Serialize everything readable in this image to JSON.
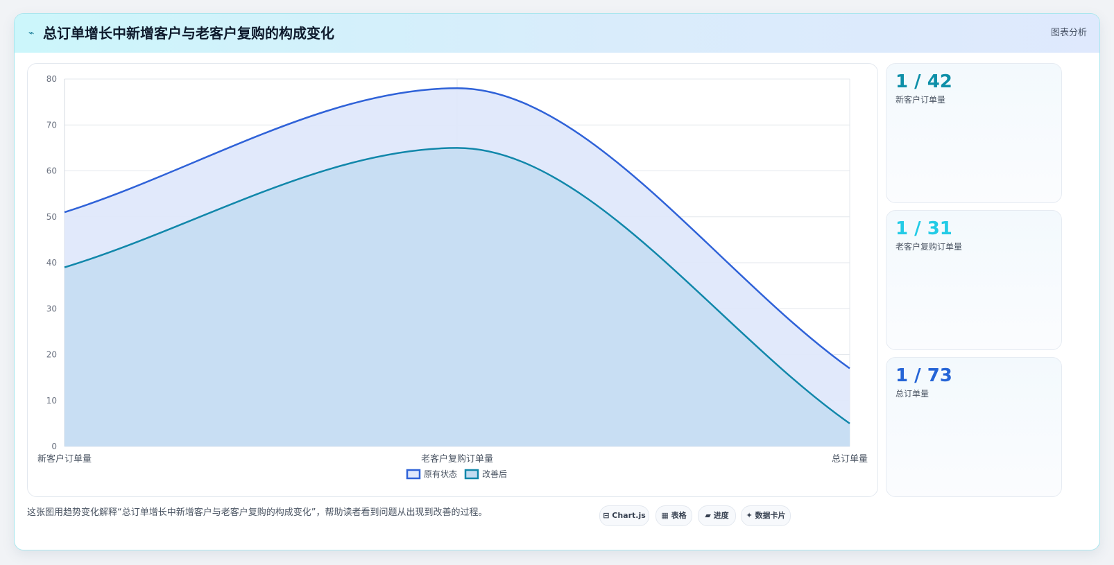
{
  "header": {
    "icon": "bolt-icon",
    "title": "总订单增长中新增客户与老客户复购的构成变化",
    "tag": "图表分析"
  },
  "chart_data": {
    "type": "area",
    "categories": [
      "新客户订单量",
      "老客户复购订单量",
      "总订单量"
    ],
    "series": [
      {
        "name": "原有状态",
        "values": [
          51,
          78,
          17
        ],
        "color": "#2f62d8",
        "fill": "#dfe8fb"
      },
      {
        "name": "改善后",
        "values": [
          39,
          65,
          5
        ],
        "color": "#1187aa",
        "fill": "#c3dcf1"
      }
    ],
    "ylim": [
      0,
      80
    ],
    "yticks": [
      0,
      10,
      20,
      30,
      40,
      50,
      60,
      70,
      80
    ],
    "grid": true,
    "legend": "bottom",
    "curve": "smooth"
  },
  "stats": [
    {
      "value": "1 / 42",
      "label": "新客户订单量",
      "color": "#0e8fa8"
    },
    {
      "value": "1 / 31",
      "label": "老客户复购订单量",
      "color": "#22cbe6"
    },
    {
      "value": "1 / 73",
      "label": "总订单量",
      "color": "#2564d6"
    }
  ],
  "caption": "这张图用趋势变化解释“总订单增长中新增客户与老客户复购的构成变化”，帮助读者看到问题从出现到改善的过程。",
  "chips": [
    {
      "icon": "window-icon",
      "glyph": "⊟",
      "label": "Chart.js"
    },
    {
      "icon": "table-icon",
      "glyph": "▦",
      "label": "表格"
    },
    {
      "icon": "progress-icon",
      "glyph": "▰",
      "label": "进度"
    },
    {
      "icon": "sparkle-icon",
      "glyph": "✦",
      "label": "数据卡片"
    }
  ]
}
